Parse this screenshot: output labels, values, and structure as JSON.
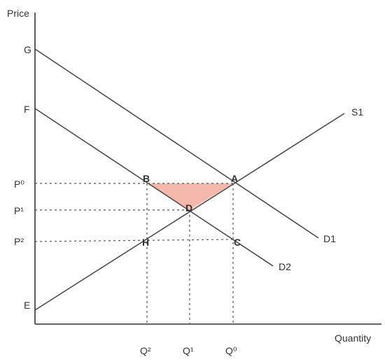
{
  "axes": {
    "y_label": "Price",
    "x_label": "Quantity"
  },
  "price_labels": {
    "p0": "P⁰",
    "p1": "P¹",
    "p2": "P²"
  },
  "quantity_labels": {
    "q2": "Q²",
    "q1": "Q¹",
    "q0": "Q⁰"
  },
  "intercept_labels": {
    "g": "G",
    "f": "F",
    "e": "E"
  },
  "point_labels": {
    "a": "A",
    "b": "B",
    "c": "C",
    "d": "D",
    "h": "H"
  },
  "curve_labels": {
    "s1": "S1",
    "d1": "D1",
    "d2": "D2"
  },
  "colors": {
    "deadweight_fill": "#f4b8aa",
    "line": "#444444"
  }
}
